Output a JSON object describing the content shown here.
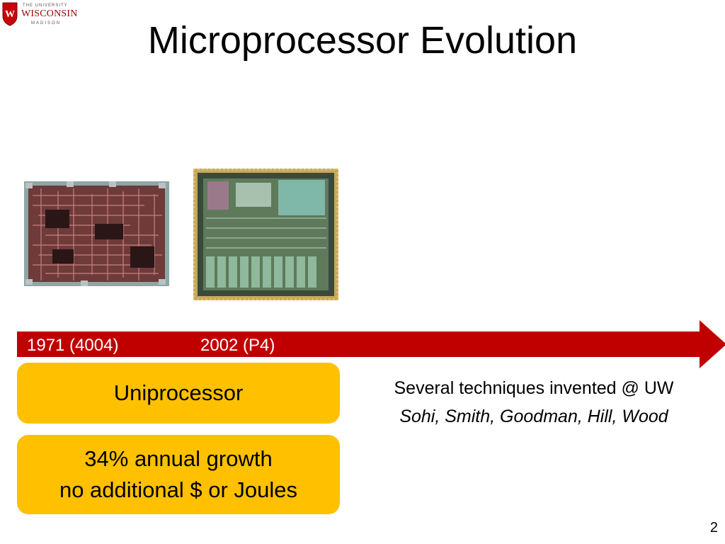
{
  "logo": {
    "line1": "THE UNIVERSITY",
    "line2": "WISCONSIN",
    "line3": "MADISON",
    "crest_letter": "W",
    "crest_color": "#c5050c"
  },
  "title": "Microprocessor Evolution",
  "timeline": {
    "arrow_color": "#c00000",
    "labels": [
      "1971 (4004)",
      "2002 (P4)"
    ]
  },
  "boxes": [
    {
      "lines": [
        "Uniprocessor"
      ]
    },
    {
      "lines": [
        "34% annual growth",
        "no additional $ or Joules"
      ]
    }
  ],
  "box_color": "#ffc000",
  "notes": {
    "line1": "Several techniques invented @ UW",
    "authors": "Sohi, Smith, Goodman, Hill, Wood"
  },
  "page_number": "2",
  "images": [
    {
      "name": "intel-4004-die",
      "icon": "chip-die-photo"
    },
    {
      "name": "pentium4-die",
      "icon": "chip-die-photo"
    }
  ]
}
